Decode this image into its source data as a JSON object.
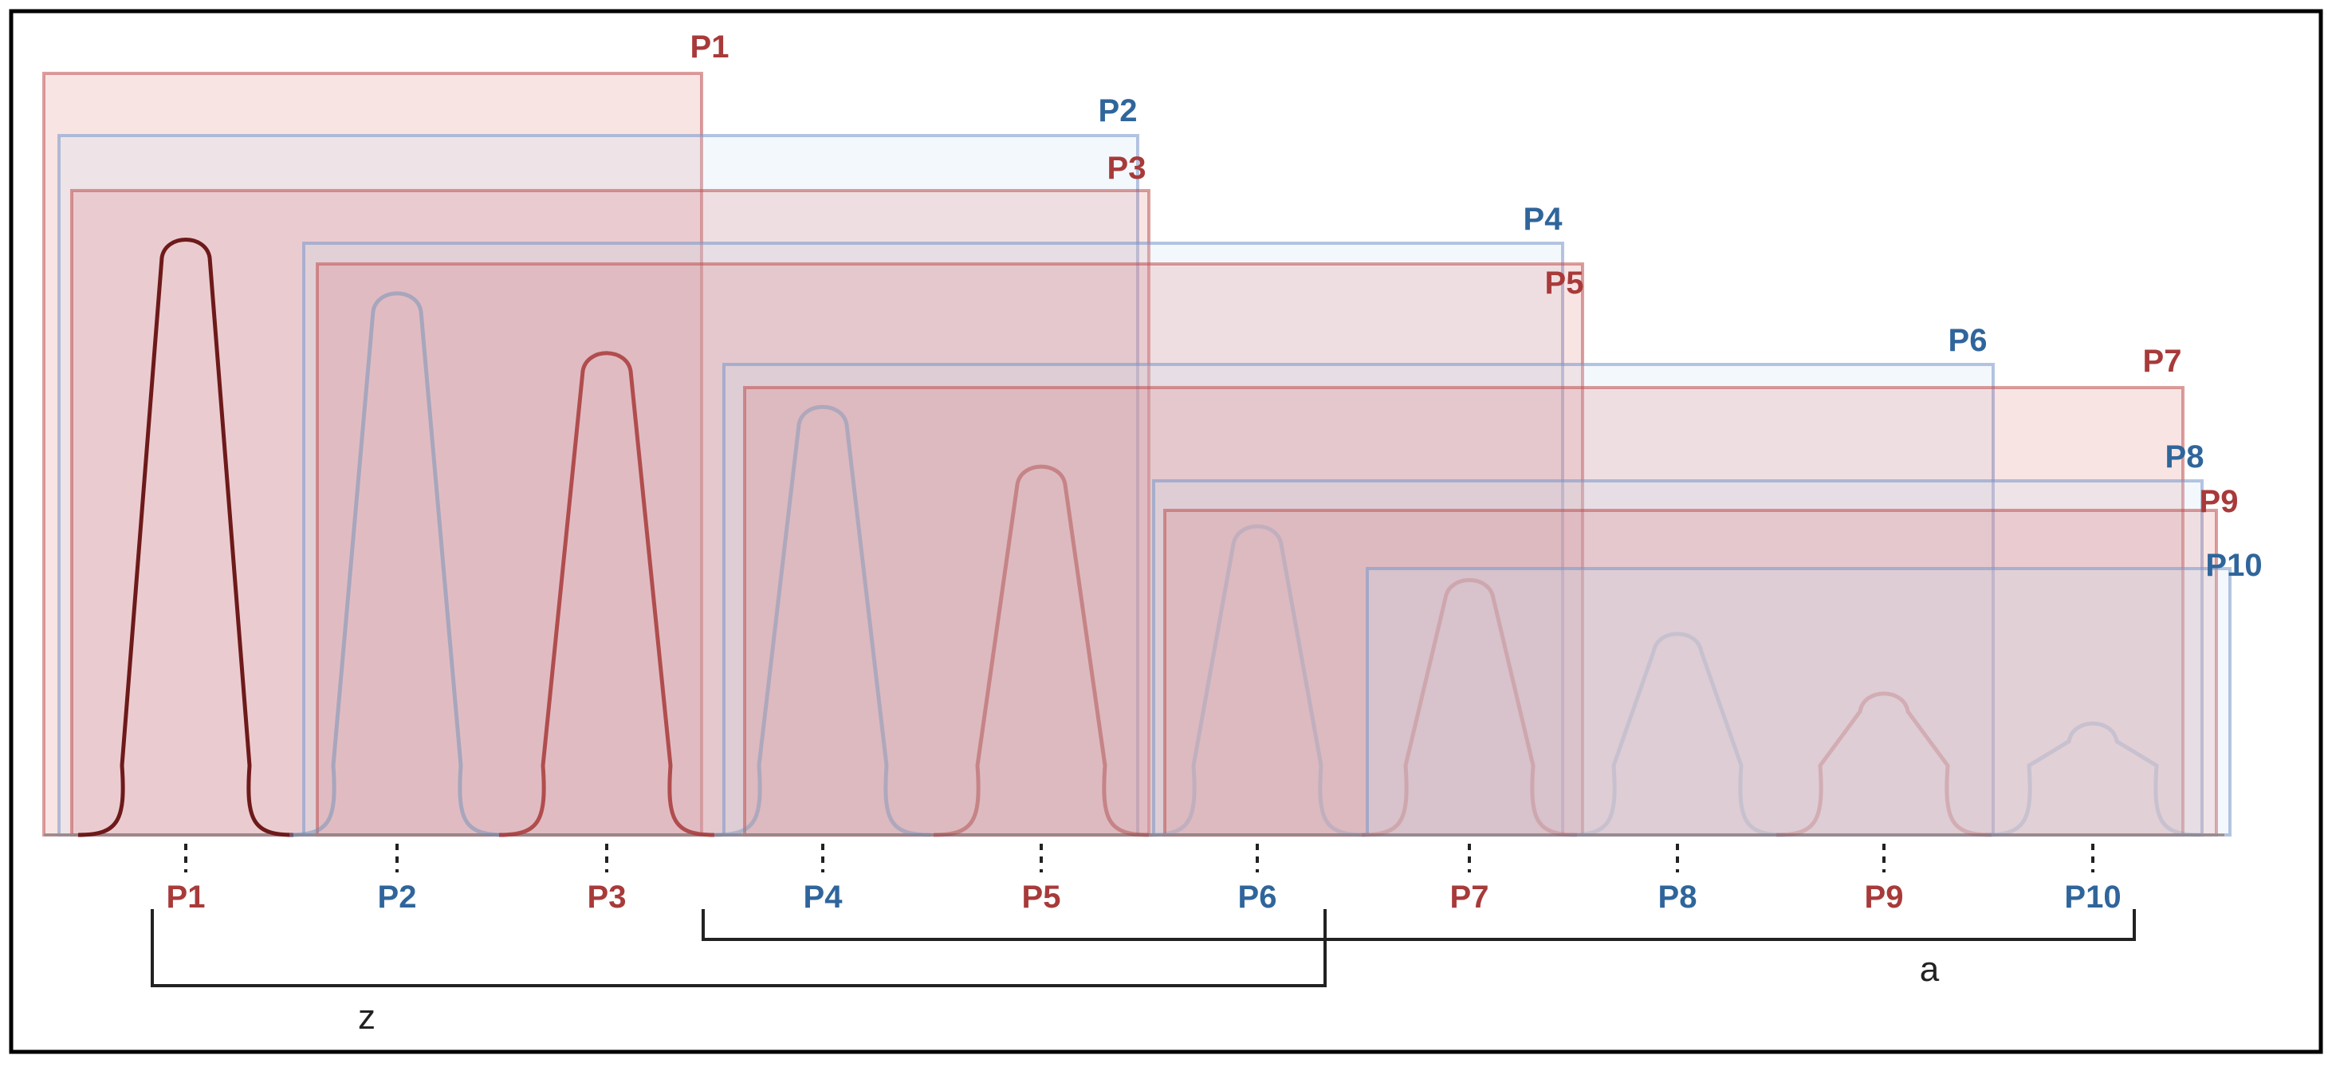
{
  "colors": {
    "red": "#A83A3A",
    "blue": "#2F659B",
    "dark_red": "#6E1A1A",
    "frame": "#000000",
    "bracket": "#222222"
  },
  "boxes": [
    {
      "label": "P1",
      "color": "red"
    },
    {
      "label": "P2",
      "color": "blue"
    },
    {
      "label": "P3",
      "color": "red"
    },
    {
      "label": "P4",
      "color": "blue"
    },
    {
      "label": "P5",
      "color": "red"
    },
    {
      "label": "P6",
      "color": "blue"
    },
    {
      "label": "P7",
      "color": "red"
    },
    {
      "label": "P8",
      "color": "blue"
    },
    {
      "label": "P9",
      "color": "red"
    },
    {
      "label": "P10",
      "color": "blue"
    }
  ],
  "peaks": [
    {
      "label": "P1",
      "color": "red",
      "relative_height": 1.0
    },
    {
      "label": "P2",
      "color": "blue",
      "relative_height": 0.91
    },
    {
      "label": "P3",
      "color": "red",
      "relative_height": 0.81
    },
    {
      "label": "P4",
      "color": "blue",
      "relative_height": 0.72
    },
    {
      "label": "P5",
      "color": "red",
      "relative_height": 0.62
    },
    {
      "label": "P6",
      "color": "blue",
      "relative_height": 0.52
    },
    {
      "label": "P7",
      "color": "red",
      "relative_height": 0.43
    },
    {
      "label": "P8",
      "color": "blue",
      "relative_height": 0.34
    },
    {
      "label": "P9",
      "color": "red",
      "relative_height": 0.24
    },
    {
      "label": "P10",
      "color": "blue",
      "relative_height": 0.19
    }
  ],
  "brackets": {
    "z": "z",
    "a": "a"
  }
}
